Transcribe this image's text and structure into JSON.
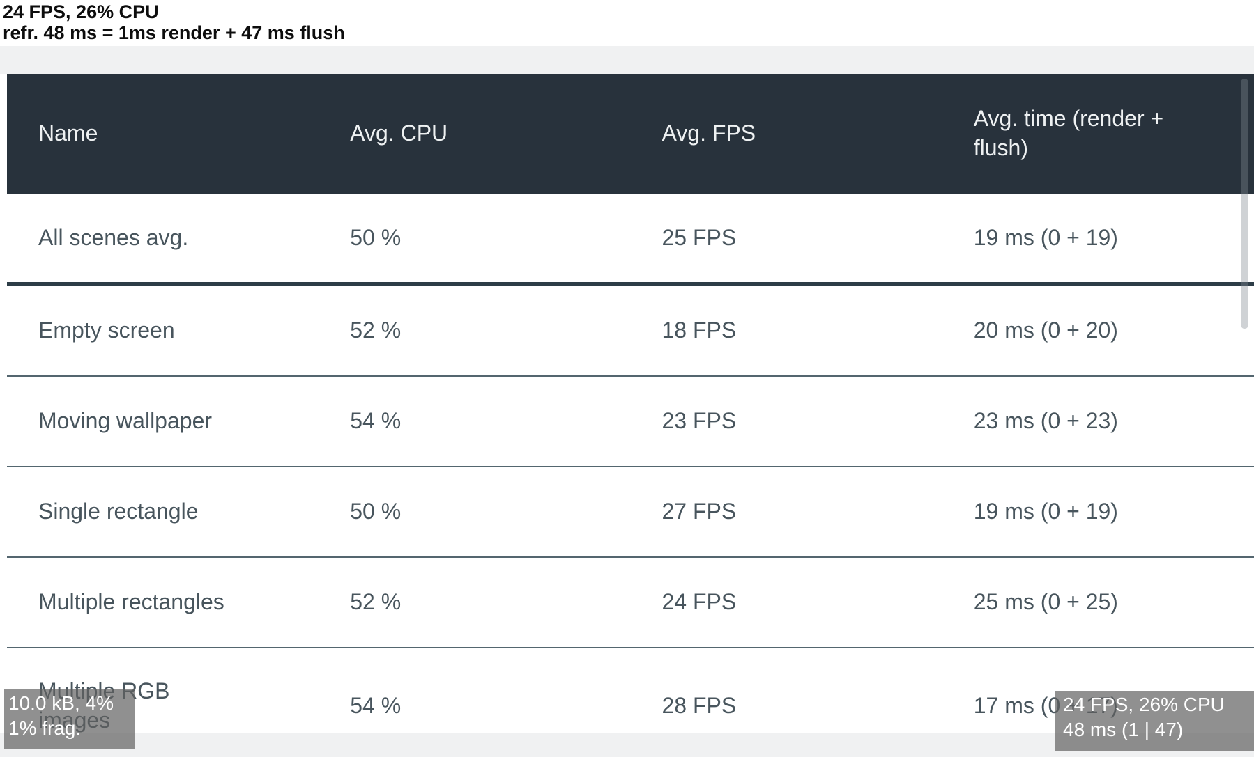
{
  "perf_monitor_top": {
    "line1": "24 FPS, 26% CPU",
    "line2": "refr. 48 ms = 1ms render + 47 ms flush"
  },
  "table": {
    "columns": [
      "Name",
      "Avg. CPU",
      "Avg. FPS",
      "Avg. time (render + flush)"
    ],
    "rows": [
      {
        "name": "All scenes avg.",
        "cpu": "50 %",
        "fps": "25 FPS",
        "time": "19 ms (0 + 19)"
      },
      {
        "name": "Empty screen",
        "cpu": "52 %",
        "fps": "18 FPS",
        "time": "20 ms (0 + 20)"
      },
      {
        "name": "Moving wallpaper",
        "cpu": "54 %",
        "fps": "23 FPS",
        "time": "23 ms (0 + 23)"
      },
      {
        "name": "Single rectangle",
        "cpu": "50 %",
        "fps": "27 FPS",
        "time": "19 ms (0 + 19)"
      },
      {
        "name": "Multiple rectangles",
        "cpu": "52 %",
        "fps": "24 FPS",
        "time": "25 ms (0 + 25)"
      },
      {
        "name": "Multiple RGB images",
        "cpu": "54 %",
        "fps": "28 FPS",
        "time": "17 ms (0 + 17)"
      }
    ]
  },
  "memory_monitor": {
    "line1": "10.0 kB, 4%",
    "line2": "1% frag."
  },
  "perf_monitor_bottom": {
    "line1": "24 FPS, 26% CPU",
    "line2": "48 ms (1 | 47)"
  },
  "colors": {
    "header_bg": "#28323c",
    "header_text": "#eef1f2",
    "body_text": "#48555d",
    "row_bg": "#ffffff",
    "divider_thin": "#54666f",
    "divider_thick": "#2d3d47",
    "page_band": "#f0f1f2",
    "overlay_bg": "rgba(97,97,97,0.70)",
    "overlay_text": "#ffffff",
    "top_text": "#0d0d0d",
    "scrollbar_thumb": "rgba(130,138,144,0.38)"
  }
}
